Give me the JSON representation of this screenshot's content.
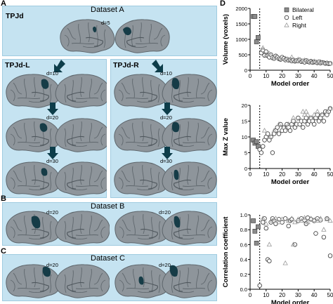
{
  "labels": {
    "A": "A",
    "B": "B",
    "C": "C",
    "D": "D"
  },
  "panelA": {
    "title": "Dataset A",
    "region": "TPJd",
    "d": "d=5",
    "left": {
      "region": "TPJd-L",
      "d": [
        "d=10",
        "d=20",
        "d=30"
      ]
    },
    "right": {
      "region": "TPJd-R",
      "d": [
        "d=10",
        "d=20",
        "d=30"
      ]
    }
  },
  "panelB": {
    "title": "Dataset B",
    "d_left": "d=20",
    "d_right": "d=20"
  },
  "panelC": {
    "title": "Dataset C",
    "d_left": "d=20",
    "d_right": "d=20"
  },
  "chart_data": [
    {
      "type": "scatter",
      "ylabel": "Volume (voxels)",
      "xlabel": "Model order",
      "xlim": [
        0,
        50
      ],
      "ylim": [
        0,
        2000
      ],
      "xticks": [
        0,
        10,
        20,
        30,
        40,
        50
      ],
      "yticks": [
        0,
        500,
        1000,
        1500,
        2000
      ],
      "vline_x": 6,
      "legend": {
        "position": "top-right",
        "entries": [
          "Bilateral",
          "Left",
          "Right"
        ]
      },
      "series": [
        {
          "name": "Bilateral",
          "marker": "square",
          "x": [
            2,
            3,
            4,
            5
          ],
          "y": [
            1740,
            1740,
            920,
            1060
          ]
        },
        {
          "name": "Left",
          "marker": "circle",
          "x": [
            7,
            8,
            9,
            10,
            11,
            12,
            13,
            14,
            15,
            16,
            17,
            18,
            19,
            20,
            21,
            22,
            23,
            24,
            25,
            26,
            27,
            28,
            29,
            30,
            31,
            32,
            33,
            34,
            35,
            36,
            37,
            38,
            39,
            40,
            41,
            42,
            43,
            44,
            45,
            46,
            47,
            48,
            49,
            50
          ],
          "y": [
            560,
            650,
            480,
            600,
            470,
            420,
            500,
            400,
            380,
            460,
            420,
            370,
            350,
            420,
            380,
            330,
            360,
            320,
            340,
            300,
            330,
            290,
            310,
            300,
            330,
            280,
            300,
            260,
            310,
            280,
            260,
            290,
            250,
            270,
            260,
            240,
            270,
            230,
            250,
            240,
            220,
            230,
            210,
            220
          ]
        },
        {
          "name": "Right",
          "marker": "triangle",
          "x": [
            8,
            10,
            12,
            14,
            16,
            18,
            20,
            22,
            24,
            26,
            28,
            30,
            32,
            34,
            36,
            38,
            40,
            42,
            44,
            46,
            48,
            50
          ],
          "y": [
            720,
            500,
            540,
            440,
            410,
            390,
            360,
            380,
            330,
            420,
            310,
            350,
            290,
            320,
            300,
            260,
            290,
            250,
            270,
            230,
            240,
            220
          ]
        }
      ]
    },
    {
      "type": "scatter",
      "ylabel": "Max Z value",
      "xlabel": "Model order",
      "xlim": [
        0,
        50
      ],
      "ylim": [
        0,
        20
      ],
      "xticks": [
        0,
        10,
        20,
        30,
        40,
        50
      ],
      "yticks": [
        0,
        5,
        10,
        15,
        20
      ],
      "vline_x": 6,
      "series": [
        {
          "name": "Bilateral",
          "marker": "square",
          "x": [
            2,
            3,
            4,
            5
          ],
          "y": [
            9,
            8,
            8.5,
            7
          ]
        },
        {
          "name": "Left",
          "marker": "circle",
          "x": [
            6,
            7,
            8,
            9,
            10,
            11,
            12,
            13,
            14,
            15,
            16,
            17,
            18,
            19,
            20,
            21,
            22,
            23,
            24,
            25,
            26,
            27,
            28,
            29,
            30,
            31,
            32,
            33,
            34,
            35,
            36,
            37,
            38,
            39,
            40,
            41,
            42,
            43,
            44,
            45,
            46,
            47,
            48,
            49,
            50
          ],
          "y": [
            6,
            5,
            7,
            9,
            10,
            11,
            9,
            10,
            5,
            11,
            12,
            13,
            11,
            14,
            12,
            13,
            12,
            14,
            13,
            12,
            14,
            15,
            13,
            14,
            16,
            14,
            15,
            13,
            15,
            16,
            14,
            15,
            16,
            15,
            14,
            16,
            17,
            15,
            16,
            17,
            15,
            18,
            17,
            18,
            19
          ]
        },
        {
          "name": "Right",
          "marker": "triangle",
          "x": [
            9,
            12,
            15,
            18,
            21,
            24,
            27,
            30,
            33,
            34,
            35,
            36,
            38,
            40,
            42,
            45,
            48,
            50
          ],
          "y": [
            12,
            10,
            12,
            14,
            13,
            14,
            16,
            15,
            18,
            17,
            18,
            17,
            16,
            17,
            18,
            17,
            18,
            19
          ]
        }
      ]
    },
    {
      "type": "scatter",
      "ylabel": "Correlation coefficient",
      "xlabel": "Model order",
      "xlim": [
        0,
        50
      ],
      "ylim": [
        0,
        1.0
      ],
      "xticks": [
        0,
        10,
        20,
        30,
        40,
        50
      ],
      "yticks": [
        0,
        0.2,
        0.4,
        0.6,
        0.8,
        1.0
      ],
      "yticklabels": [
        "0.0",
        "0.2",
        "0.4",
        "0.6",
        "0.8",
        "1.0"
      ],
      "vline_x": 6,
      "series": [
        {
          "name": "Bilateral",
          "marker": "square",
          "x": [
            2,
            3,
            4,
            5
          ],
          "y": [
            0.92,
            0.78,
            0.62,
            0.84
          ]
        },
        {
          "name": "Left",
          "marker": "circle",
          "x": [
            6,
            8,
            9,
            10,
            11,
            12,
            13,
            14,
            15,
            16,
            18,
            20,
            22,
            24,
            25,
            26,
            28,
            30,
            32,
            34,
            35,
            36,
            38,
            40,
            41,
            42,
            44,
            46,
            48,
            50
          ],
          "y": [
            0.05,
            0.9,
            0.95,
            0.82,
            0.4,
            0.38,
            0.9,
            0.95,
            0.92,
            0.88,
            0.94,
            0.9,
            0.95,
            0.85,
            0.92,
            0.94,
            0.6,
            0.92,
            0.95,
            0.93,
            0.88,
            0.96,
            0.94,
            0.92,
            0.75,
            0.95,
            0.93,
            0.7,
            0.95,
            0.45
          ]
        },
        {
          "name": "Right",
          "marker": "triangle",
          "x": [
            8,
            10,
            12,
            14,
            16,
            18,
            20,
            22,
            24,
            26,
            27,
            28,
            30,
            32,
            34,
            36,
            38,
            40,
            42,
            44,
            46,
            48,
            50
          ],
          "y": [
            0.95,
            0.88,
            0.6,
            0.92,
            0.95,
            0.9,
            0.94,
            0.35,
            0.92,
            0.95,
            0.6,
            0.9,
            0.94,
            0.92,
            0.96,
            0.9,
            0.95,
            0.93,
            0.92,
            0.95,
            0.8,
            0.94,
            0.92
          ]
        }
      ]
    }
  ]
}
